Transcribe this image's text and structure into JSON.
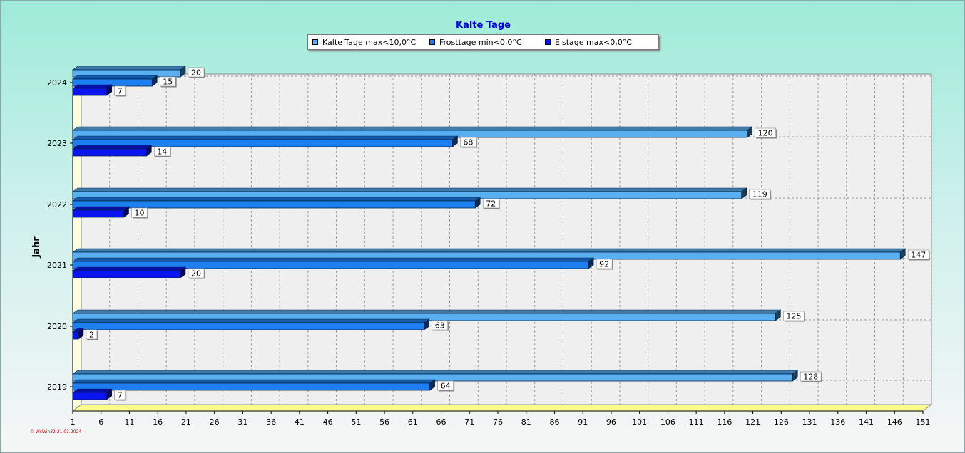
{
  "chart_data": {
    "type": "bar",
    "orientation": "horizontal",
    "title": "Kalte Tage",
    "ylabel": "Jahr",
    "xlabel": "",
    "categories": [
      "2024",
      "2023",
      "2022",
      "2021",
      "2020",
      "2019"
    ],
    "series": [
      {
        "name": "Kalte Tage max<10,0°C",
        "color": "#5aaff0",
        "values": [
          20,
          120,
          119,
          147,
          125,
          128
        ]
      },
      {
        "name": "Frosttage min<0,0°C",
        "color": "#1e7ff0",
        "values": [
          15,
          68,
          72,
          92,
          63,
          64
        ]
      },
      {
        "name": "Eistage max<0,0°C",
        "color": "#0a14f0",
        "values": [
          7,
          14,
          10,
          20,
          2,
          7
        ]
      }
    ],
    "xticks": [
      1,
      6,
      11,
      16,
      21,
      26,
      31,
      36,
      41,
      46,
      51,
      56,
      61,
      66,
      71,
      76,
      81,
      86,
      91,
      96,
      101,
      106,
      111,
      116,
      121,
      126,
      131,
      136,
      141,
      146,
      151
    ],
    "xlim": [
      1,
      151
    ],
    "grid": true,
    "legend_position": "top-center"
  },
  "footer": "© WsWin32  21.01.2024"
}
